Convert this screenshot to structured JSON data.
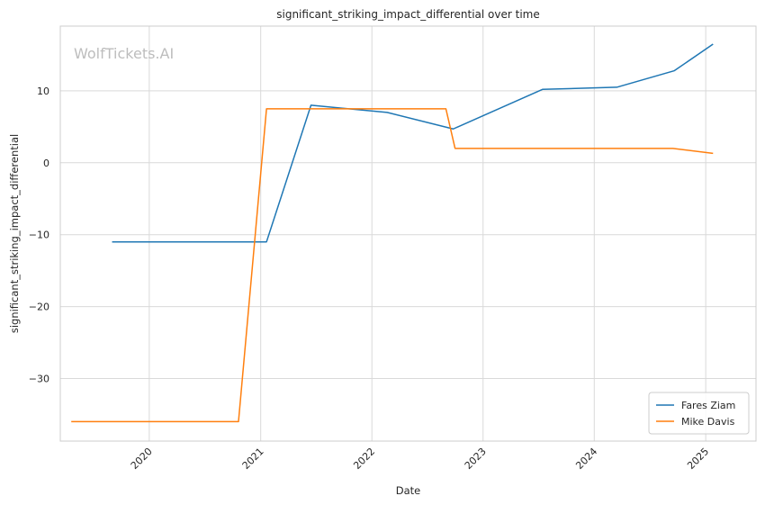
{
  "chart_data": {
    "type": "line",
    "title": "significant_striking_impact_differential over time",
    "xlabel": "Date",
    "ylabel": "significant_striking_impact_differential",
    "watermark": "WolfTickets.AI",
    "xlim": [
      "2019-03-15",
      "2025-06-15"
    ],
    "ylim": [
      -38.7,
      19.0
    ],
    "x_ticks": [
      {
        "date": "2020-01-01",
        "label": "2020"
      },
      {
        "date": "2021-01-01",
        "label": "2021"
      },
      {
        "date": "2022-01-01",
        "label": "2022"
      },
      {
        "date": "2023-01-01",
        "label": "2023"
      },
      {
        "date": "2024-01-01",
        "label": "2024"
      },
      {
        "date": "2025-01-01",
        "label": "2025"
      }
    ],
    "y_ticks": [
      {
        "value": 10,
        "label": "10"
      },
      {
        "value": 0,
        "label": "0"
      },
      {
        "value": -10,
        "label": "−10"
      },
      {
        "value": -20,
        "label": "−20"
      },
      {
        "value": -30,
        "label": "−30"
      }
    ],
    "grid": true,
    "legend_position": "bottom-right",
    "series": [
      {
        "name": "Fares Ziam",
        "color": "#1f77b4",
        "points": [
          {
            "x": "2019-09-01",
            "y": -11.0
          },
          {
            "x": "2021-01-20",
            "y": -11.0
          },
          {
            "x": "2021-06-15",
            "y": 8.0
          },
          {
            "x": "2022-02-20",
            "y": 7.0
          },
          {
            "x": "2022-09-25",
            "y": 4.7
          },
          {
            "x": "2023-07-15",
            "y": 10.2
          },
          {
            "x": "2024-03-15",
            "y": 10.5
          },
          {
            "x": "2024-09-20",
            "y": 12.8
          },
          {
            "x": "2025-01-25",
            "y": 16.5
          }
        ]
      },
      {
        "name": "Mike Davis",
        "color": "#ff7f0e",
        "points": [
          {
            "x": "2019-04-20",
            "y": -36.0
          },
          {
            "x": "2020-10-20",
            "y": -36.0
          },
          {
            "x": "2021-01-20",
            "y": 7.5
          },
          {
            "x": "2022-09-01",
            "y": 7.5
          },
          {
            "x": "2022-10-01",
            "y": 2.0
          },
          {
            "x": "2024-09-15",
            "y": 2.0
          },
          {
            "x": "2025-01-25",
            "y": 1.3
          }
        ]
      }
    ]
  }
}
